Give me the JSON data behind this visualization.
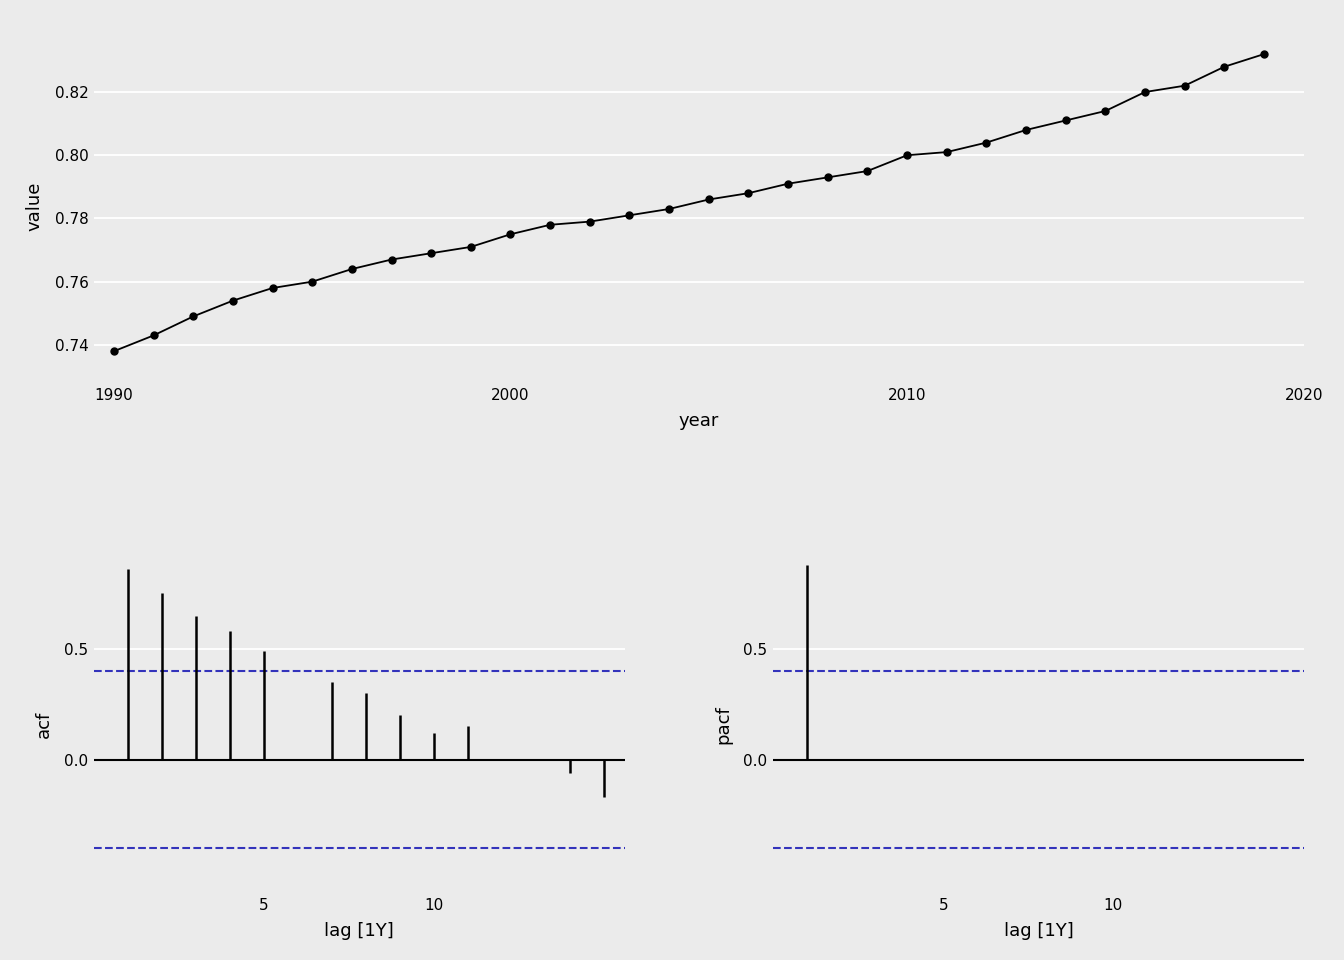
{
  "time_series": {
    "years": [
      1990,
      1991,
      1992,
      1993,
      1994,
      1995,
      1996,
      1997,
      1998,
      1999,
      2000,
      2001,
      2002,
      2003,
      2004,
      2005,
      2006,
      2007,
      2008,
      2009,
      2010,
      2011,
      2012,
      2013,
      2014,
      2015,
      2016,
      2017,
      2018,
      2019
    ],
    "values": [
      0.738,
      0.743,
      0.749,
      0.754,
      0.758,
      0.76,
      0.764,
      0.767,
      0.769,
      0.771,
      0.775,
      0.778,
      0.779,
      0.781,
      0.783,
      0.786,
      0.788,
      0.791,
      0.793,
      0.795,
      0.8,
      0.801,
      0.804,
      0.808,
      0.811,
      0.814,
      0.82,
      0.822,
      0.828,
      0.832
    ],
    "xlabel": "year",
    "ylabel": "value",
    "xlim": [
      1989.5,
      2020
    ],
    "ylim": [
      0.728,
      0.84
    ],
    "yticks": [
      0.74,
      0.76,
      0.78,
      0.8,
      0.82
    ],
    "xticks": [
      1990,
      2000,
      2010,
      2020
    ]
  },
  "acf": {
    "lags": [
      1,
      2,
      3,
      4,
      5,
      6,
      7,
      8,
      9,
      10,
      11,
      12,
      13,
      14,
      15
    ],
    "values": [
      0.86,
      0.75,
      0.65,
      0.58,
      0.49,
      0.0,
      0.35,
      0.3,
      0.2,
      0.12,
      0.15,
      0.0,
      0.0,
      -0.06,
      -0.17
    ],
    "ci_upper": 0.4,
    "ci_lower": -0.4,
    "xlabel": "lag [1Y]",
    "ylabel": "acf",
    "xlim": [
      0.0,
      15.6
    ],
    "ylim": [
      -0.6,
      0.92
    ],
    "yticks": [
      0.0,
      0.5
    ],
    "xticks": [
      5,
      10
    ]
  },
  "pacf": {
    "lags": [
      1,
      2,
      3,
      4,
      5,
      6,
      7,
      8,
      9,
      10,
      11,
      12,
      13,
      14,
      15
    ],
    "values": [
      0.88,
      0.0,
      0.0,
      0.0,
      0.0,
      0.0,
      0.0,
      0.0,
      0.0,
      0.0,
      0.0,
      0.0,
      0.0,
      0.0,
      0.0
    ],
    "ci_upper": 0.4,
    "ci_lower": -0.4,
    "xlabel": "lag [1Y]",
    "ylabel": "pacf",
    "xlim": [
      0.0,
      15.6
    ],
    "ylim": [
      -0.6,
      0.92
    ],
    "yticks": [
      0.0,
      0.5
    ],
    "xticks": [
      5,
      10
    ]
  },
  "background_color": "#ebebeb",
  "panel_bg": "#ebebeb",
  "grid_color": "#ffffff",
  "line_color": "#000000",
  "ci_color": "#3333bb",
  "bar_linewidth": 1.8,
  "zero_linewidth": 1.5,
  "ci_linewidth": 1.5,
  "ts_linewidth": 1.3,
  "ts_markersize": 5.0
}
